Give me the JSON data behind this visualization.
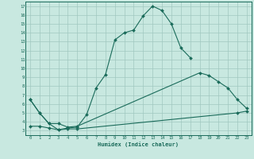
{
  "xlabel": "Humidex (Indice chaleur)",
  "bg_color": "#c8e8e0",
  "line_color": "#1a6b5a",
  "grid_color": "#a0c8c0",
  "xlim": [
    -0.5,
    23.5
  ],
  "ylim": [
    2.5,
    17.5
  ],
  "line1_x": [
    0,
    1,
    2,
    3,
    4,
    5,
    6,
    7,
    8,
    9,
    10,
    11,
    12,
    13,
    14,
    15,
    16,
    17
  ],
  "line1_y": [
    6.5,
    5.0,
    3.8,
    3.1,
    3.3,
    3.4,
    4.8,
    7.8,
    9.3,
    13.2,
    14.0,
    14.3,
    15.9,
    17.0,
    16.5,
    15.0,
    12.3,
    11.2
  ],
  "line2_x": [
    0,
    1,
    2,
    3,
    4,
    5,
    18,
    19,
    20,
    21,
    22,
    23
  ],
  "line2_y": [
    6.5,
    5.0,
    3.8,
    3.8,
    3.4,
    3.5,
    9.5,
    9.2,
    8.5,
    7.8,
    6.5,
    5.5
  ],
  "line3_x": [
    0,
    1,
    2,
    3,
    4,
    5,
    22,
    23
  ],
  "line3_y": [
    3.5,
    3.5,
    3.3,
    3.1,
    3.2,
    3.2,
    5.0,
    5.2
  ],
  "xticks": [
    0,
    1,
    2,
    3,
    4,
    5,
    6,
    7,
    8,
    9,
    10,
    11,
    12,
    13,
    14,
    15,
    16,
    17,
    18,
    19,
    20,
    21,
    22,
    23
  ],
  "yticks": [
    3,
    4,
    5,
    6,
    7,
    8,
    9,
    10,
    11,
    12,
    13,
    14,
    15,
    16,
    17
  ]
}
